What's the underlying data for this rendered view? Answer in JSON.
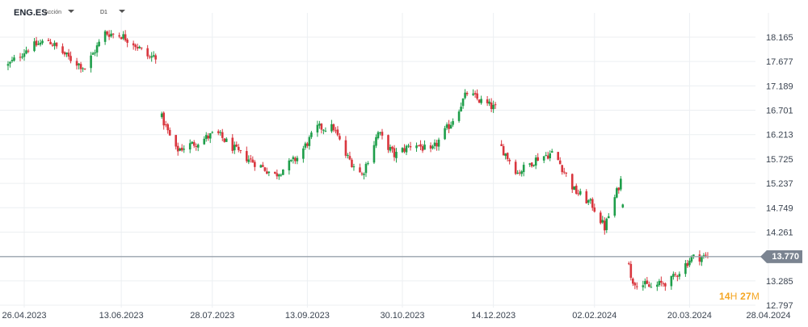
{
  "header": {
    "symbol": "ENG.ES",
    "symbol_type": "Acción",
    "timeframe": "D1"
  },
  "countdown": {
    "hours": "14",
    "h_unit": "H",
    "minutes": "27",
    "m_unit": "M"
  },
  "colors": {
    "up": "#1e9e4a",
    "down": "#d9363e",
    "price_line": "#9aa3ad",
    "grid": "#eceff2",
    "countdown": "#f5a623"
  },
  "chart_data": {
    "type": "candlestick",
    "instrument": "ENG.ES",
    "timeframe": "D1",
    "x_ticks": [
      "26.04.2023",
      "13.06.2023",
      "28.07.2023",
      "13.09.2023",
      "30.10.2023",
      "14.12.2023",
      "02.02.2024",
      "20.03.2024",
      "28.04.2024"
    ],
    "y_ticks": [
      "18.165",
      "17.677",
      "17.189",
      "16.701",
      "16.213",
      "15.725",
      "15.237",
      "14.749",
      "14.261",
      "13.285",
      "12.797"
    ],
    "ylim": [
      12.797,
      18.165
    ],
    "current_price": "13.770",
    "close_path": [
      {
        "date": "2023-04-18",
        "close": 17.6
      },
      {
        "date": "2023-04-28",
        "close": 17.95
      },
      {
        "date": "2023-05-08",
        "close": 18.1
      },
      {
        "date": "2023-05-18",
        "close": 17.75
      },
      {
        "date": "2023-05-26",
        "close": 17.55
      },
      {
        "date": "2023-06-05",
        "close": 18.25
      },
      {
        "date": "2023-06-13",
        "close": 18.2
      },
      {
        "date": "2023-06-19",
        "close": 18.05
      },
      {
        "date": "2023-06-27",
        "close": 17.75
      },
      {
        "date": "2023-06-30",
        "close": 17.8
      },
      {
        "date": "2023-07-03",
        "close": 16.55
      },
      {
        "date": "2023-07-10",
        "close": 15.9
      },
      {
        "date": "2023-07-20",
        "close": 16.05
      },
      {
        "date": "2023-07-30",
        "close": 16.25
      },
      {
        "date": "2023-08-10",
        "close": 15.85
      },
      {
        "date": "2023-08-20",
        "close": 15.6
      },
      {
        "date": "2023-08-28",
        "close": 15.4
      },
      {
        "date": "2023-09-08",
        "close": 15.75
      },
      {
        "date": "2023-09-18",
        "close": 16.35
      },
      {
        "date": "2023-09-26",
        "close": 16.35
      },
      {
        "date": "2023-10-02",
        "close": 15.8
      },
      {
        "date": "2023-10-10",
        "close": 15.4
      },
      {
        "date": "2023-10-18",
        "close": 16.25
      },
      {
        "date": "2023-10-26",
        "close": 15.8
      },
      {
        "date": "2023-11-05",
        "close": 16.05
      },
      {
        "date": "2023-11-13",
        "close": 15.85
      },
      {
        "date": "2023-11-23",
        "close": 16.45
      },
      {
        "date": "2023-12-01",
        "close": 17.05
      },
      {
        "date": "2023-12-09",
        "close": 16.85
      },
      {
        "date": "2023-12-16",
        "close": 16.72
      },
      {
        "date": "2023-12-18",
        "close": 15.95
      },
      {
        "date": "2023-12-26",
        "close": 15.45
      },
      {
        "date": "2024-01-05",
        "close": 15.75
      },
      {
        "date": "2024-01-13",
        "close": 15.85
      },
      {
        "date": "2024-01-23",
        "close": 15.1
      },
      {
        "date": "2024-02-01",
        "close": 14.8
      },
      {
        "date": "2024-02-07",
        "close": 14.35
      },
      {
        "date": "2024-02-15",
        "close": 15.3
      },
      {
        "date": "2024-02-20",
        "close": 13.3
      },
      {
        "date": "2024-03-01",
        "close": 13.15
      },
      {
        "date": "2024-03-11",
        "close": 13.3
      },
      {
        "date": "2024-03-21",
        "close": 13.75
      },
      {
        "date": "2024-03-29",
        "close": 13.77
      }
    ]
  }
}
